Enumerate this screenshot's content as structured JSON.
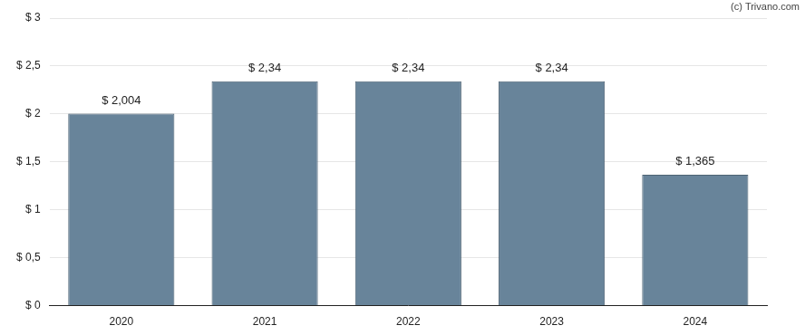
{
  "chart_data": {
    "type": "bar",
    "annotations": [
      "(c) Trivano.com"
    ],
    "categories": [
      "2020",
      "2021",
      "2022",
      "2023",
      "2024"
    ],
    "values": [
      2.004,
      2.34,
      2.34,
      2.34,
      1.365
    ],
    "value_labels": [
      "$ 2,004",
      "$ 2,34",
      "$ 2,34",
      "$ 2,34",
      "$ 1,365"
    ],
    "data_labels": true,
    "color": "#68849a",
    "ylim": [
      0,
      3
    ],
    "yticks": [
      {
        "value": 0,
        "label": "$ 0"
      },
      {
        "value": 0.5,
        "label": "$ 0,5"
      },
      {
        "value": 1,
        "label": "$ 1"
      },
      {
        "value": 1.5,
        "label": "$ 1,5"
      },
      {
        "value": 2,
        "label": "$ 2"
      },
      {
        "value": 2.5,
        "label": "$ 2,5"
      },
      {
        "value": 3,
        "label": "$ 3"
      }
    ],
    "grid": true
  }
}
